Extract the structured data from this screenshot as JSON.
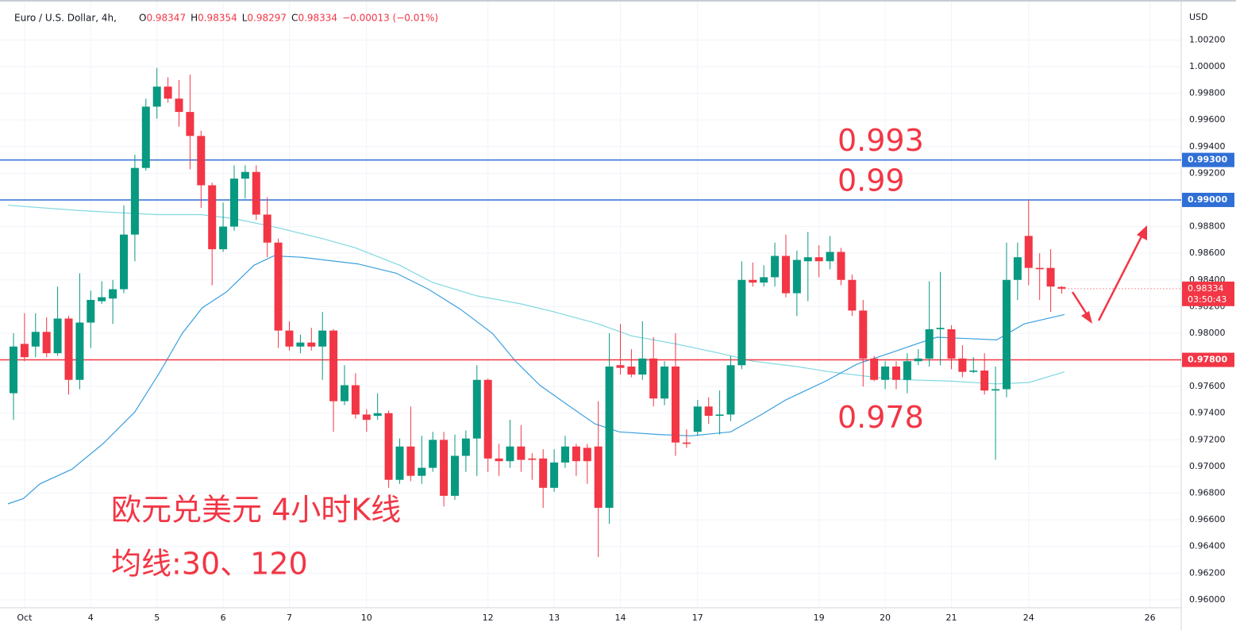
{
  "header": {
    "symbol": "Euro / U.S. Dollar, 4h,",
    "ohlc": [
      {
        "label": "O",
        "value": "0.98347"
      },
      {
        "label": "H",
        "value": "0.98354"
      },
      {
        "label": "L",
        "value": "0.98297"
      },
      {
        "label": "C",
        "value": "0.98334"
      }
    ],
    "change": "−0.00013 (−0.01%)"
  },
  "chart_data": {
    "type": "candlestick",
    "y_axis_label": "USD",
    "up_color": "#089981",
    "down_color": "#f23645",
    "x": [
      0,
      1,
      2,
      3,
      4,
      5,
      6,
      7,
      8,
      9,
      10,
      11,
      12,
      13,
      14,
      15,
      16,
      17,
      18,
      19,
      20,
      21,
      22,
      23,
      24,
      25,
      26,
      27,
      28,
      29,
      30,
      31,
      32,
      33,
      34,
      35,
      36,
      37,
      38,
      39,
      40,
      41,
      42,
      43,
      44,
      45,
      46,
      47,
      48,
      49,
      50,
      51,
      52,
      53,
      54,
      55,
      56,
      57,
      58,
      59,
      60,
      61,
      62,
      63,
      64,
      65,
      66,
      67,
      68,
      69,
      70,
      71,
      72,
      73,
      74,
      75,
      76,
      77,
      78,
      79,
      80,
      81,
      82,
      83,
      84,
      85,
      86,
      87,
      88,
      89,
      90,
      91,
      92,
      93,
      94,
      95
    ],
    "open": [
      0.9755,
      0.9792,
      0.979,
      0.9801,
      0.9785,
      0.9811,
      0.9765,
      0.9808,
      0.9824,
      0.9826,
      0.9833,
      0.9874,
      0.9924,
      0.997,
      0.9985,
      0.9976,
      0.9966,
      0.9948,
      0.9911,
      0.9863,
      0.988,
      0.9916,
      0.9921,
      0.9889,
      0.9868,
      0.9802,
      0.979,
      0.9793,
      0.979,
      0.9802,
      0.9749,
      0.9761,
      0.9739,
      0.9738,
      0.974,
      0.969,
      0.9715,
      0.9693,
      0.9699,
      0.972,
      0.9678,
      0.9708,
      0.9721,
      0.9765,
      0.9706,
      0.9704,
      0.9715,
      0.9706,
      0.9706,
      0.9684,
      0.9703,
      0.9715,
      0.9714,
      0.9715,
      0.9669,
      0.9776,
      0.9775,
      0.9769,
      0.9781,
      0.9751,
      0.9775,
      0.9718,
      0.9726,
      0.9745,
      0.9738,
      0.9739,
      0.9776,
      0.984,
      0.9838,
      0.9842,
      0.9858,
      0.983,
      0.9854,
      0.9857,
      0.9854,
      0.9861,
      0.984,
      0.9817,
      0.9781,
      0.9765,
      0.9775,
      0.9765,
      0.9779,
      0.9781,
      0.9803,
      0.9803,
      0.9781,
      0.9771,
      0.9772,
      0.9757,
      0.9758,
      0.984,
      0.9873,
      0.9849,
      0.9849,
      0.98347
    ],
    "high": [
      0.98,
      0.9815,
      0.9815,
      0.9812,
      0.9835,
      0.9813,
      0.9845,
      0.9832,
      0.9839,
      0.984,
      0.9896,
      0.9934,
      0.9976,
      0.9999,
      0.9992,
      0.999,
      0.9994,
      0.9952,
      0.9913,
      0.9898,
      0.9926,
      0.9926,
      0.9926,
      0.9902,
      0.9871,
      0.9809,
      0.9799,
      0.9804,
      0.9816,
      0.9803,
      0.9776,
      0.977,
      0.9743,
      0.9755,
      0.9742,
      0.9721,
      0.9745,
      0.9723,
      0.9726,
      0.9726,
      0.9724,
      0.9727,
      0.9776,
      0.9766,
      0.9717,
      0.9735,
      0.9731,
      0.971,
      0.9713,
      0.9713,
      0.9723,
      0.9717,
      0.9717,
      0.9749,
      0.98,
      0.9807,
      0.9788,
      0.9809,
      0.9797,
      0.9779,
      0.98,
      0.9728,
      0.975,
      0.9752,
      0.9757,
      0.9783,
      0.9854,
      0.9853,
      0.9851,
      0.9868,
      0.9874,
      0.9862,
      0.9876,
      0.9866,
      0.9873,
      0.9864,
      0.9844,
      0.9825,
      0.9783,
      0.9779,
      0.9779,
      0.9785,
      0.9788,
      0.9839,
      0.9846,
      0.9806,
      0.9791,
      0.9782,
      0.9785,
      0.9775,
      0.9868,
      0.9868,
      0.99,
      0.986,
      0.9863,
      0.98354
    ],
    "low": [
      0.9735,
      0.9779,
      0.9782,
      0.9782,
      0.9783,
      0.9754,
      0.9758,
      0.9789,
      0.9822,
      0.9807,
      0.983,
      0.9854,
      0.9922,
      0.9961,
      0.9973,
      0.9955,
      0.9923,
      0.9894,
      0.9836,
      0.9861,
      0.9877,
      0.9901,
      0.9885,
      0.9857,
      0.9789,
      0.9787,
      0.9785,
      0.9787,
      0.9765,
      0.9726,
      0.9746,
      0.9736,
      0.9726,
      0.9735,
      0.9684,
      0.9687,
      0.9689,
      0.9687,
      0.9696,
      0.967,
      0.9675,
      0.9696,
      0.9693,
      0.9696,
      0.9693,
      0.9699,
      0.9696,
      0.969,
      0.9669,
      0.9681,
      0.9699,
      0.9693,
      0.9687,
      0.9632,
      0.9657,
      0.9769,
      0.9767,
      0.9765,
      0.9745,
      0.9746,
      0.9708,
      0.9714,
      0.9723,
      0.9732,
      0.9724,
      0.9734,
      0.9773,
      0.9835,
      0.9835,
      0.9835,
      0.9827,
      0.9813,
      0.9824,
      0.9842,
      0.9848,
      0.9836,
      0.9813,
      0.976,
      0.9764,
      0.9758,
      0.9758,
      0.9755,
      0.9776,
      0.9775,
      0.9776,
      0.9773,
      0.9767,
      0.977,
      0.9754,
      0.9705,
      0.9752,
      0.9825,
      0.9836,
      0.9825,
      0.9816,
      0.98297
    ],
    "close": [
      0.979,
      0.9782,
      0.9801,
      0.9785,
      0.9811,
      0.9765,
      0.9808,
      0.9825,
      0.9827,
      0.9833,
      0.9874,
      0.9924,
      0.997,
      0.9985,
      0.9976,
      0.9966,
      0.9948,
      0.9911,
      0.9863,
      0.988,
      0.9916,
      0.9921,
      0.9889,
      0.9868,
      0.9802,
      0.979,
      0.9793,
      0.979,
      0.9802,
      0.9749,
      0.9761,
      0.9739,
      0.9735,
      0.974,
      0.969,
      0.9715,
      0.9693,
      0.9699,
      0.972,
      0.9678,
      0.9708,
      0.9721,
      0.9765,
      0.9706,
      0.9704,
      0.9715,
      0.9705,
      0.9705,
      0.9684,
      0.9703,
      0.9715,
      0.9704,
      0.9704,
      0.9669,
      0.9775,
      0.9774,
      0.9769,
      0.9781,
      0.9751,
      0.9775,
      0.9718,
      0.9717,
      0.9745,
      0.9738,
      0.9739,
      0.9776,
      0.984,
      0.9838,
      0.9842,
      0.9858,
      0.983,
      0.9855,
      0.9857,
      0.9854,
      0.9861,
      0.984,
      0.9817,
      0.9781,
      0.9765,
      0.9775,
      0.9765,
      0.9779,
      0.9781,
      0.9803,
      0.9804,
      0.9781,
      0.9771,
      0.9772,
      0.9757,
      0.9758,
      0.984,
      0.9857,
      0.9849,
      0.9848,
      0.9835,
      0.98334
    ],
    "lines": [
      {
        "color": "#7fd8e0",
        "x": [
          -0.5,
          6,
          13,
          17,
          20,
          24,
          28,
          31,
          35,
          38,
          42,
          46,
          49,
          53,
          56,
          60,
          64,
          67,
          71,
          74,
          78,
          81,
          85,
          89,
          92,
          95.25
        ],
        "values": [
          0.9896,
          0.9892,
          0.9889,
          0.9889,
          0.9886,
          0.9879,
          0.9871,
          0.9864,
          0.9851,
          0.9838,
          0.9828,
          0.9822,
          0.9816,
          0.9807,
          0.9798,
          0.9792,
          0.9785,
          0.9779,
          0.9775,
          0.9771,
          0.9767,
          0.9765,
          0.9764,
          0.9762,
          0.9763,
          0.9771
        ]
      },
      {
        "color": "#3aa0e0",
        "x": [
          -0.5,
          0.9,
          2.4,
          5.3,
          8.1,
          11,
          13.2,
          15.3,
          17.1,
          19.3,
          21.8,
          23.6,
          26.1,
          31.2,
          34.7,
          37.6,
          40.5,
          43.4,
          45.5,
          47.7,
          50.6,
          52.7,
          54.9,
          58.5,
          61.4,
          65,
          67.8,
          70,
          73.6,
          76.5,
          79.4,
          82.2,
          83.7,
          86.5,
          89.1,
          91.6,
          95.25
        ],
        "values": [
          0.9672,
          0.9676,
          0.9687,
          0.9698,
          0.9717,
          0.9741,
          0.977,
          0.98,
          0.9819,
          0.9831,
          0.9851,
          0.9858,
          0.9857,
          0.9852,
          0.9845,
          0.9833,
          0.9818,
          0.98,
          0.9779,
          0.9761,
          0.9744,
          0.9732,
          0.9726,
          0.9724,
          0.9723,
          0.9726,
          0.9739,
          0.975,
          0.9764,
          0.9777,
          0.9785,
          0.9793,
          0.9797,
          0.9796,
          0.9795,
          0.9807,
          0.9814
        ]
      }
    ],
    "levels": [
      {
        "value": 0.993,
        "label": "0.99300",
        "annotation": "0.993",
        "color": "#2f6fd6"
      },
      {
        "value": 0.99,
        "label": "0.99000",
        "annotation": "0.99",
        "color": "#2f6fd6"
      },
      {
        "value": 0.978,
        "label": "0.97800",
        "annotation": "0.978",
        "color": "#f23645"
      }
    ],
    "last_price": {
      "value": 0.98334,
      "label": "0.98334",
      "countdown": "03:50:43",
      "color": "#f23645"
    },
    "annotations": [
      "欧元兑美元 4小时K线",
      "均线:30、120"
    ],
    "xlim": [
      -1.223,
      105.83
    ],
    "ylim": [
      0.9594,
      1.005
    ],
    "xticks": [
      {
        "value": 1,
        "label": "Oct"
      },
      {
        "value": 7,
        "label": "4"
      },
      {
        "value": 13,
        "label": "5"
      },
      {
        "value": 19,
        "label": "6"
      },
      {
        "value": 25,
        "label": "7"
      },
      {
        "value": 32,
        "label": "10"
      },
      {
        "value": 43,
        "label": "12"
      },
      {
        "value": 49,
        "label": "13"
      },
      {
        "value": 55,
        "label": "14"
      },
      {
        "value": 62,
        "label": "17"
      },
      {
        "value": 73,
        "label": "19"
      },
      {
        "value": 79,
        "label": "20"
      },
      {
        "value": 85,
        "label": "21"
      },
      {
        "value": 92,
        "label": "24"
      },
      {
        "value": 103,
        "label": "26"
      }
    ],
    "yticks": [
      {
        "value": 0.96,
        "label": "0.96000"
      },
      {
        "value": 0.962,
        "label": "0.96200"
      },
      {
        "value": 0.964,
        "label": "0.96400"
      },
      {
        "value": 0.966,
        "label": "0.96600"
      },
      {
        "value": 0.968,
        "label": "0.96800"
      },
      {
        "value": 0.97,
        "label": "0.97000"
      },
      {
        "value": 0.972,
        "label": "0.97200"
      },
      {
        "value": 0.974,
        "label": "0.97400"
      },
      {
        "value": 0.976,
        "label": "0.97600"
      },
      {
        "value": 0.978,
        "label": "0.97800"
      },
      {
        "value": 0.98,
        "label": "0.98000"
      },
      {
        "value": 0.982,
        "label": "0.98200"
      },
      {
        "value": 0.984,
        "label": "0.98400"
      },
      {
        "value": 0.986,
        "label": "0.98600"
      },
      {
        "value": 0.988,
        "label": "0.98800"
      },
      {
        "value": 0.99,
        "label": "0.99000"
      },
      {
        "value": 0.992,
        "label": "0.99200"
      },
      {
        "value": 0.994,
        "label": "0.99400"
      },
      {
        "value": 0.996,
        "label": "0.99600"
      },
      {
        "value": 0.998,
        "label": "0.99800"
      },
      {
        "value": 1,
        "label": "1.00000"
      },
      {
        "value": 1.002,
        "label": "1.00200"
      }
    ],
    "grid": true
  }
}
